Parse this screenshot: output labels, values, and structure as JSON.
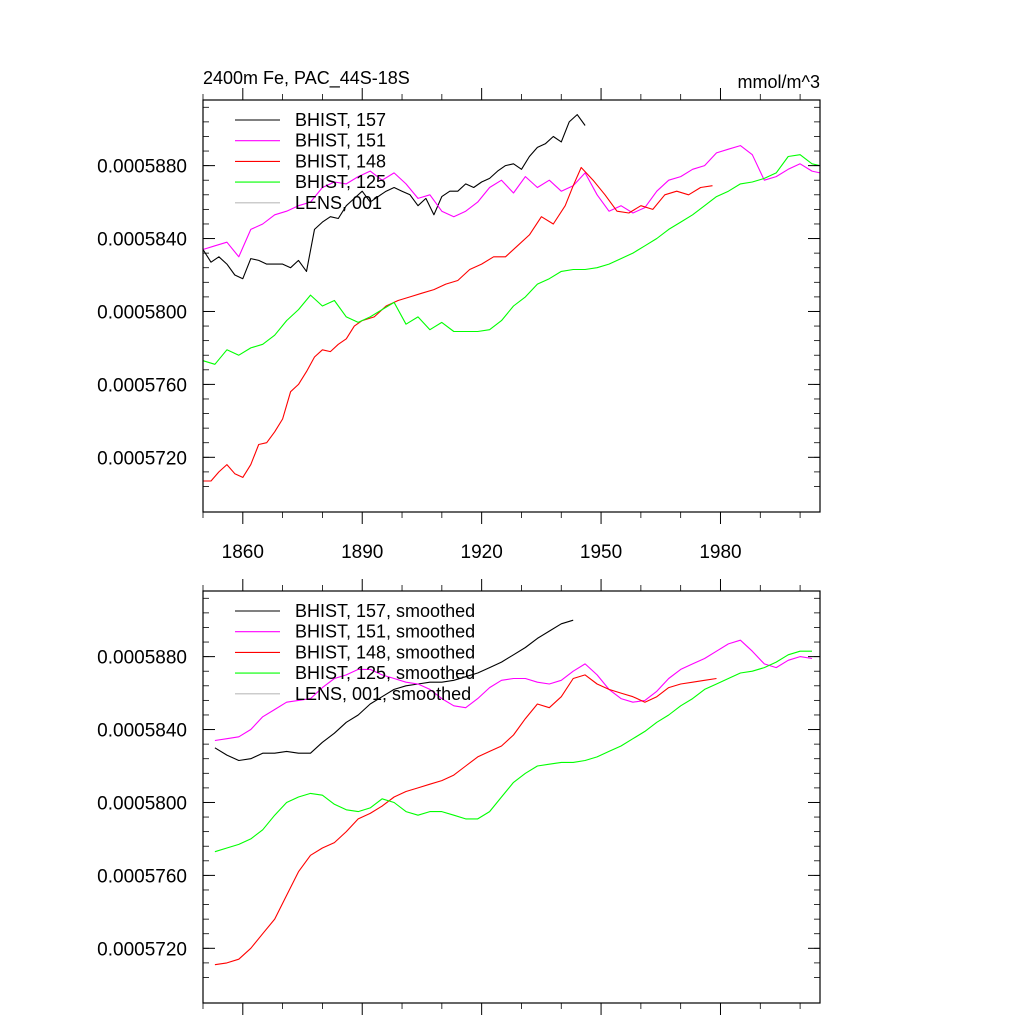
{
  "chart_data": [
    {
      "type": "line",
      "title_left": "2400m Fe, PAC_44S-18S",
      "title_right": "mmol/m^3",
      "xlim": [
        1850,
        2005
      ],
      "ylim": [
        0.000569,
        0.0005916
      ],
      "x_ticks": [
        "1860",
        "1890",
        "1920",
        "1950",
        "1980"
      ],
      "x_tick_values": [
        1860,
        1890,
        1920,
        1950,
        1980
      ],
      "y_ticks": [
        "0.0005720",
        "0.0005760",
        "0.0005800",
        "0.0005840",
        "0.0005880"
      ],
      "y_tick_values": [
        0.000572,
        0.000576,
        0.00058,
        0.000584,
        0.000588
      ],
      "series": [
        {
          "name": "BHIST, 157",
          "color": "#000000",
          "x": [
            1850,
            1852,
            1854,
            1856,
            1858,
            1860,
            1862,
            1864,
            1866,
            1868,
            1870,
            1872,
            1874,
            1876,
            1878,
            1880,
            1882,
            1884,
            1886,
            1888,
            1890,
            1892,
            1894,
            1896,
            1898,
            1900,
            1902,
            1904,
            1906,
            1908,
            1910,
            1912,
            1914,
            1916,
            1918,
            1920,
            1922,
            1924,
            1926,
            1928,
            1930,
            1932,
            1934,
            1936,
            1938,
            1940,
            1942,
            1944,
            1946
          ],
          "y": [
            0.0005834,
            0.0005827,
            0.000583,
            0.0005826,
            0.000582,
            0.0005818,
            0.0005829,
            0.0005828,
            0.0005826,
            0.0005826,
            0.0005826,
            0.0005824,
            0.0005828,
            0.0005822,
            0.0005845,
            0.0005849,
            0.0005852,
            0.0005851,
            0.0005858,
            0.0005862,
            0.0005866,
            0.000586,
            0.0005863,
            0.0005866,
            0.0005868,
            0.0005866,
            0.0005864,
            0.0005858,
            0.0005862,
            0.0005853,
            0.0005863,
            0.0005866,
            0.0005866,
            0.000587,
            0.0005868,
            0.0005871,
            0.0005873,
            0.0005877,
            0.000588,
            0.0005881,
            0.0005878,
            0.0005885,
            0.000589,
            0.0005892,
            0.0005896,
            0.0005893,
            0.0005904,
            0.0005908,
            0.0005902
          ]
        },
        {
          "name": "BHIST, 151",
          "color": "#ff00ff",
          "x": [
            1850,
            1853,
            1856,
            1859,
            1862,
            1865,
            1868,
            1871,
            1874,
            1877,
            1880,
            1883,
            1886,
            1889,
            1892,
            1895,
            1898,
            1901,
            1904,
            1907,
            1910,
            1913,
            1916,
            1919,
            1922,
            1925,
            1928,
            1931,
            1934,
            1937,
            1940,
            1943,
            1946,
            1949,
            1952,
            1955,
            1958,
            1961,
            1964,
            1967,
            1970,
            1973,
            1976,
            1979,
            1982,
            1985,
            1988,
            1991,
            1994,
            1997,
            2000,
            2003,
            2005
          ],
          "y": [
            0.0005834,
            0.0005836,
            0.0005838,
            0.000583,
            0.0005845,
            0.0005848,
            0.0005853,
            0.0005855,
            0.0005858,
            0.000586,
            0.0005868,
            0.0005871,
            0.000587,
            0.0005874,
            0.0005877,
            0.0005872,
            0.0005876,
            0.000587,
            0.0005862,
            0.0005864,
            0.0005855,
            0.0005852,
            0.0005855,
            0.000586,
            0.0005868,
            0.0005872,
            0.0005865,
            0.0005874,
            0.0005868,
            0.0005872,
            0.0005866,
            0.0005869,
            0.0005876,
            0.0005864,
            0.0005855,
            0.0005858,
            0.0005854,
            0.0005857,
            0.0005866,
            0.0005872,
            0.0005874,
            0.0005878,
            0.000588,
            0.0005887,
            0.0005889,
            0.0005891,
            0.0005886,
            0.0005872,
            0.0005874,
            0.0005878,
            0.0005881,
            0.0005877,
            0.0005876
          ]
        },
        {
          "name": "BHIST, 148",
          "color": "#ff0000",
          "x": [
            1850,
            1852,
            1854,
            1856,
            1858,
            1860,
            1862,
            1864,
            1866,
            1868,
            1870,
            1872,
            1874,
            1876,
            1878,
            1880,
            1882,
            1884,
            1886,
            1888,
            1890,
            1893,
            1896,
            1899,
            1902,
            1905,
            1908,
            1911,
            1914,
            1917,
            1920,
            1923,
            1926,
            1929,
            1932,
            1935,
            1938,
            1941,
            1943,
            1945,
            1948,
            1951,
            1954,
            1957,
            1960,
            1963,
            1966,
            1969,
            1972,
            1975,
            1978
          ],
          "y": [
            0.0005707,
            0.0005707,
            0.0005712,
            0.0005716,
            0.0005711,
            0.0005709,
            0.0005716,
            0.0005727,
            0.0005728,
            0.0005734,
            0.0005741,
            0.0005756,
            0.000576,
            0.0005767,
            0.0005775,
            0.0005779,
            0.0005778,
            0.0005782,
            0.0005785,
            0.0005792,
            0.0005795,
            0.0005797,
            0.0005803,
            0.0005806,
            0.0005808,
            0.000581,
            0.0005812,
            0.0005815,
            0.0005817,
            0.0005823,
            0.0005826,
            0.000583,
            0.000583,
            0.0005836,
            0.0005842,
            0.0005852,
            0.0005848,
            0.0005858,
            0.0005869,
            0.0005879,
            0.0005872,
            0.0005864,
            0.0005855,
            0.0005854,
            0.0005858,
            0.0005856,
            0.0005864,
            0.0005866,
            0.0005864,
            0.0005868,
            0.0005869
          ]
        },
        {
          "name": "BHIST, 125",
          "color": "#00ff00",
          "x": [
            1850,
            1853,
            1856,
            1859,
            1862,
            1865,
            1868,
            1871,
            1874,
            1877,
            1880,
            1883,
            1886,
            1889,
            1892,
            1895,
            1898,
            1901,
            1904,
            1907,
            1910,
            1913,
            1916,
            1919,
            1922,
            1925,
            1928,
            1931,
            1934,
            1937,
            1940,
            1943,
            1946,
            1949,
            1952,
            1955,
            1958,
            1961,
            1964,
            1967,
            1970,
            1973,
            1976,
            1979,
            1982,
            1985,
            1988,
            1991,
            1994,
            1997,
            2000,
            2003,
            2005
          ],
          "y": [
            0.0005773,
            0.0005771,
            0.0005779,
            0.0005776,
            0.000578,
            0.0005782,
            0.0005787,
            0.0005795,
            0.0005801,
            0.0005809,
            0.0005803,
            0.0005806,
            0.0005797,
            0.0005794,
            0.0005797,
            0.0005801,
            0.0005805,
            0.0005793,
            0.0005797,
            0.000579,
            0.0005794,
            0.0005789,
            0.0005789,
            0.0005789,
            0.000579,
            0.0005795,
            0.0005803,
            0.0005808,
            0.0005815,
            0.0005818,
            0.0005822,
            0.0005823,
            0.0005823,
            0.0005824,
            0.0005826,
            0.0005829,
            0.0005832,
            0.0005836,
            0.000584,
            0.0005845,
            0.0005849,
            0.0005853,
            0.0005858,
            0.0005863,
            0.0005866,
            0.000587,
            0.0005871,
            0.0005873,
            0.0005876,
            0.0005885,
            0.0005886,
            0.0005881,
            0.000588
          ]
        },
        {
          "name": "LENS, 001",
          "color": "#bbbbbb",
          "x": [],
          "y": []
        }
      ]
    },
    {
      "type": "line",
      "xlim": [
        1850,
        2005
      ],
      "ylim": [
        0.000569,
        0.0005916
      ],
      "y_ticks": [
        "0.0005720",
        "0.0005760",
        "0.0005800",
        "0.0005840",
        "0.0005880"
      ],
      "y_tick_values": [
        0.000572,
        0.000576,
        0.00058,
        0.000584,
        0.000588
      ],
      "x_tick_values": [
        1860,
        1890,
        1920,
        1950,
        1980
      ],
      "series": [
        {
          "name": "BHIST, 157, smoothed",
          "color": "#000000",
          "x": [
            1853,
            1856,
            1859,
            1862,
            1865,
            1868,
            1871,
            1874,
            1877,
            1880,
            1883,
            1886,
            1889,
            1892,
            1895,
            1898,
            1901,
            1904,
            1907,
            1910,
            1913,
            1916,
            1919,
            1922,
            1925,
            1928,
            1931,
            1934,
            1937,
            1940,
            1943
          ],
          "y": [
            0.000583,
            0.0005826,
            0.0005823,
            0.0005824,
            0.0005827,
            0.0005827,
            0.0005828,
            0.0005827,
            0.0005827,
            0.0005833,
            0.0005838,
            0.0005844,
            0.0005848,
            0.0005854,
            0.0005858,
            0.0005862,
            0.0005864,
            0.0005865,
            0.0005866,
            0.0005866,
            0.0005867,
            0.0005869,
            0.0005871,
            0.0005874,
            0.0005877,
            0.0005881,
            0.0005885,
            0.000589,
            0.0005894,
            0.0005898,
            0.00059
          ]
        },
        {
          "name": "BHIST, 151, smoothed",
          "color": "#ff00ff",
          "x": [
            1853,
            1856,
            1859,
            1862,
            1865,
            1868,
            1871,
            1874,
            1877,
            1880,
            1883,
            1886,
            1889,
            1892,
            1895,
            1898,
            1901,
            1904,
            1907,
            1910,
            1913,
            1916,
            1919,
            1922,
            1925,
            1928,
            1931,
            1934,
            1937,
            1940,
            1943,
            1946,
            1949,
            1952,
            1955,
            1958,
            1961,
            1964,
            1967,
            1970,
            1973,
            1976,
            1979,
            1982,
            1985,
            1988,
            1991,
            1994,
            1997,
            2000,
            2003
          ],
          "y": [
            0.0005834,
            0.0005835,
            0.0005836,
            0.000584,
            0.0005847,
            0.0005851,
            0.0005855,
            0.0005856,
            0.0005857,
            0.0005863,
            0.0005868,
            0.000587,
            0.0005873,
            0.0005873,
            0.000587,
            0.0005868,
            0.0005866,
            0.0005865,
            0.0005862,
            0.0005857,
            0.0005853,
            0.0005852,
            0.0005857,
            0.0005863,
            0.0005867,
            0.0005868,
            0.0005868,
            0.0005866,
            0.0005865,
            0.0005867,
            0.0005872,
            0.0005876,
            0.000587,
            0.0005862,
            0.0005857,
            0.0005855,
            0.0005856,
            0.0005861,
            0.0005868,
            0.0005873,
            0.0005876,
            0.0005879,
            0.0005883,
            0.0005887,
            0.0005889,
            0.0005883,
            0.0005876,
            0.0005874,
            0.0005878,
            0.000588,
            0.0005879
          ]
        },
        {
          "name": "BHIST, 148, smoothed",
          "color": "#ff0000",
          "x": [
            1853,
            1856,
            1859,
            1862,
            1865,
            1868,
            1871,
            1874,
            1877,
            1880,
            1883,
            1886,
            1889,
            1892,
            1895,
            1898,
            1901,
            1904,
            1907,
            1910,
            1913,
            1916,
            1919,
            1922,
            1925,
            1928,
            1931,
            1934,
            1937,
            1940,
            1943,
            1946,
            1949,
            1952,
            1955,
            1958,
            1961,
            1964,
            1967,
            1970,
            1973,
            1976,
            1979
          ],
          "y": [
            0.0005711,
            0.0005712,
            0.0005714,
            0.000572,
            0.0005728,
            0.0005736,
            0.0005749,
            0.0005762,
            0.0005771,
            0.0005775,
            0.0005778,
            0.0005784,
            0.0005791,
            0.0005794,
            0.0005798,
            0.0005803,
            0.0005806,
            0.0005808,
            0.000581,
            0.0005812,
            0.0005815,
            0.000582,
            0.0005825,
            0.0005828,
            0.0005831,
            0.0005837,
            0.0005846,
            0.0005854,
            0.0005852,
            0.0005858,
            0.0005868,
            0.000587,
            0.0005865,
            0.0005862,
            0.000586,
            0.0005858,
            0.0005855,
            0.0005858,
            0.0005863,
            0.0005865,
            0.0005866,
            0.0005867,
            0.0005868
          ]
        },
        {
          "name": "BHIST, 125, smoothed",
          "color": "#00ff00",
          "x": [
            1853,
            1856,
            1859,
            1862,
            1865,
            1868,
            1871,
            1874,
            1877,
            1880,
            1883,
            1886,
            1889,
            1892,
            1895,
            1898,
            1901,
            1904,
            1907,
            1910,
            1913,
            1916,
            1919,
            1922,
            1925,
            1928,
            1931,
            1934,
            1937,
            1940,
            1943,
            1946,
            1949,
            1952,
            1955,
            1958,
            1961,
            1964,
            1967,
            1970,
            1973,
            1976,
            1979,
            1982,
            1985,
            1988,
            1991,
            1994,
            1997,
            2000,
            2003
          ],
          "y": [
            0.0005773,
            0.0005775,
            0.0005777,
            0.000578,
            0.0005785,
            0.0005793,
            0.00058,
            0.0005803,
            0.0005805,
            0.0005804,
            0.0005799,
            0.0005796,
            0.0005795,
            0.0005797,
            0.0005802,
            0.00058,
            0.0005795,
            0.0005793,
            0.0005795,
            0.0005795,
            0.0005793,
            0.0005791,
            0.0005791,
            0.0005795,
            0.0005803,
            0.0005811,
            0.0005816,
            0.000582,
            0.0005821,
            0.0005822,
            0.0005822,
            0.0005823,
            0.0005825,
            0.0005828,
            0.0005831,
            0.0005835,
            0.0005839,
            0.0005844,
            0.0005848,
            0.0005853,
            0.0005857,
            0.0005862,
            0.0005865,
            0.0005868,
            0.0005871,
            0.0005872,
            0.0005874,
            0.0005877,
            0.0005881,
            0.0005883,
            0.0005883
          ]
        },
        {
          "name": "LENS, 001, smoothed",
          "color": "#bbbbbb",
          "x": [],
          "y": []
        }
      ]
    }
  ]
}
